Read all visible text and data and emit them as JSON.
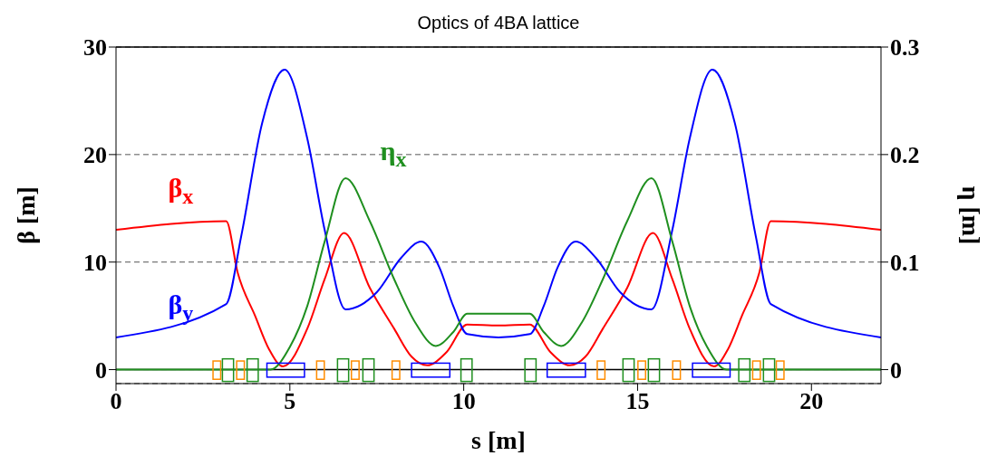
{
  "chart_data": {
    "type": "line",
    "title": "Optics of 4BA lattice",
    "xlabel": "s [m]",
    "ylabel": "β [m]",
    "y2label": "η [m]",
    "xlim": [
      0,
      22
    ],
    "xticks": [
      0,
      5,
      10,
      15,
      20
    ],
    "ylim": [
      -1.3,
      30
    ],
    "yticks": [
      0,
      10,
      20,
      30
    ],
    "y2lim": [
      -0.013,
      0.3
    ],
    "y2ticks": [
      0,
      0.1,
      0.2,
      0.3
    ],
    "grid": "y",
    "marker": "none",
    "line_style": "solid",
    "ref_lines": [
      {
        "axis": "y",
        "value": 0,
        "color": "#000000",
        "line_style": "solid"
      }
    ],
    "series": [
      {
        "name": "β$_{x}$",
        "color": "#ff0000",
        "x": [
          0,
          3.17,
          3.5,
          4.0,
          4.4,
          4.8,
          5.5,
          6.0,
          6.56,
          7.3,
          8.0,
          8.5,
          8.95,
          9.5,
          10.1,
          11,
          11.9,
          12.5,
          13.05,
          13.5,
          14.0,
          14.7,
          15.44,
          16.0,
          16.5,
          17.2,
          17.6,
          18.0,
          18.5,
          18.83,
          22
        ],
        "values": [
          13.0,
          13.8,
          9.0,
          5.0,
          1.9,
          0.3,
          3.8,
          8.4,
          12.7,
          7.6,
          3.8,
          1.2,
          0.4,
          1.6,
          4.2,
          4.1,
          4.2,
          1.6,
          0.4,
          1.2,
          3.8,
          7.6,
          12.7,
          8.4,
          3.8,
          0.3,
          1.9,
          5.0,
          9.0,
          13.8,
          13.0
        ]
      },
      {
        "name": "β$_{y}$",
        "color": "#0000ff",
        "x": [
          0,
          3.17,
          3.6,
          4.2,
          4.85,
          5.5,
          6.0,
          6.6,
          7.5,
          8.2,
          8.78,
          9.3,
          9.7,
          10.1,
          11,
          11.9,
          12.3,
          12.7,
          13.22,
          13.8,
          14.5,
          15.4,
          16.0,
          16.5,
          17.15,
          17.8,
          18.4,
          18.83,
          22
        ],
        "values": [
          3.0,
          6.1,
          12.4,
          22.9,
          27.9,
          21.5,
          13.0,
          5.6,
          7.2,
          10.4,
          11.9,
          9.5,
          5.9,
          3.3,
          3.0,
          3.3,
          5.9,
          9.5,
          11.9,
          10.4,
          7.2,
          5.6,
          13.0,
          21.5,
          27.9,
          22.9,
          12.4,
          6.1,
          3.0
        ]
      },
      {
        "name": "η$_{x}$",
        "color": "#1f8f1f",
        "axis": "y2",
        "x": [
          0,
          4.44,
          5.0,
          5.5,
          6.0,
          6.6,
          7.3,
          8.0,
          8.6,
          9.2,
          9.7,
          10.1,
          11,
          11.9,
          12.3,
          12.8,
          13.4,
          14.0,
          14.7,
          15.4,
          16.0,
          16.5,
          17.0,
          17.56,
          22
        ],
        "values": [
          0,
          0,
          0.021,
          0.059,
          0.119,
          0.178,
          0.138,
          0.084,
          0.044,
          0.022,
          0.035,
          0.052,
          0.052,
          0.052,
          0.035,
          0.022,
          0.044,
          0.084,
          0.138,
          0.178,
          0.119,
          0.059,
          0.021,
          0,
          0
        ]
      }
    ]
  }
}
